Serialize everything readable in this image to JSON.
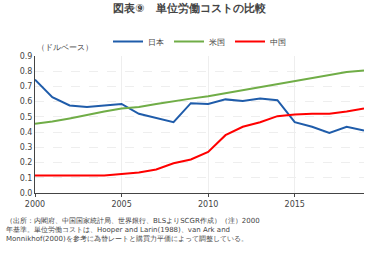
{
  "chart_data": {
    "type": "line",
    "title": "図表⑨　単位労働コストの比較",
    "subtitle": "（ドルベース）",
    "annotations": [
      "（出所：内閣府、中国国家統計局、世界銀行、BLSよりSCGR作成）（注）2000",
      "年基準。単位労働コストは、Hooper and Larin(1988)、van Ark and",
      "Monnikhof(2000)を参考に為替レートと購買力平価によって調整している。"
    ],
    "x": [
      2000,
      2001,
      2002,
      2003,
      2004,
      2005,
      2006,
      2007,
      2008,
      2009,
      2010,
      2011,
      2012,
      2013,
      2014,
      2015,
      2016,
      2017,
      2018,
      2019
    ],
    "series": [
      {
        "name": "日本",
        "color": "#1f5caa",
        "values": [
          0.745,
          0.63,
          0.575,
          0.565,
          0.575,
          0.585,
          0.52,
          0.49,
          0.465,
          0.59,
          0.585,
          0.615,
          0.605,
          0.62,
          0.61,
          0.465,
          0.435,
          0.395,
          0.435,
          0.41
        ]
      },
      {
        "name": "米国",
        "color": "#70ad47",
        "values": [
          0.455,
          0.47,
          0.49,
          0.515,
          0.535,
          0.555,
          0.565,
          0.585,
          0.605,
          0.62,
          0.635,
          0.655,
          0.675,
          0.695,
          0.715,
          0.735,
          0.755,
          0.775,
          0.795,
          0.805
        ]
      },
      {
        "name": "中国",
        "color": "#ff0000",
        "values": [
          0.115,
          0.115,
          0.115,
          0.115,
          0.115,
          0.125,
          0.135,
          0.155,
          0.195,
          0.22,
          0.27,
          0.38,
          0.435,
          0.465,
          0.505,
          0.515,
          0.52,
          0.52,
          0.535,
          0.555
        ]
      }
    ],
    "xlim": [
      2000,
      2019
    ],
    "xticks": [
      2000,
      2005,
      2010,
      2015
    ],
    "ylim": [
      0,
      0.9
    ],
    "yticks": [
      {
        "value": 0,
        "label": "0.0"
      },
      0.1,
      0.2,
      0.3,
      0.4,
      0.5,
      0.6,
      0.7,
      0.8,
      0.9
    ],
    "grid": true,
    "legend": "top"
  }
}
